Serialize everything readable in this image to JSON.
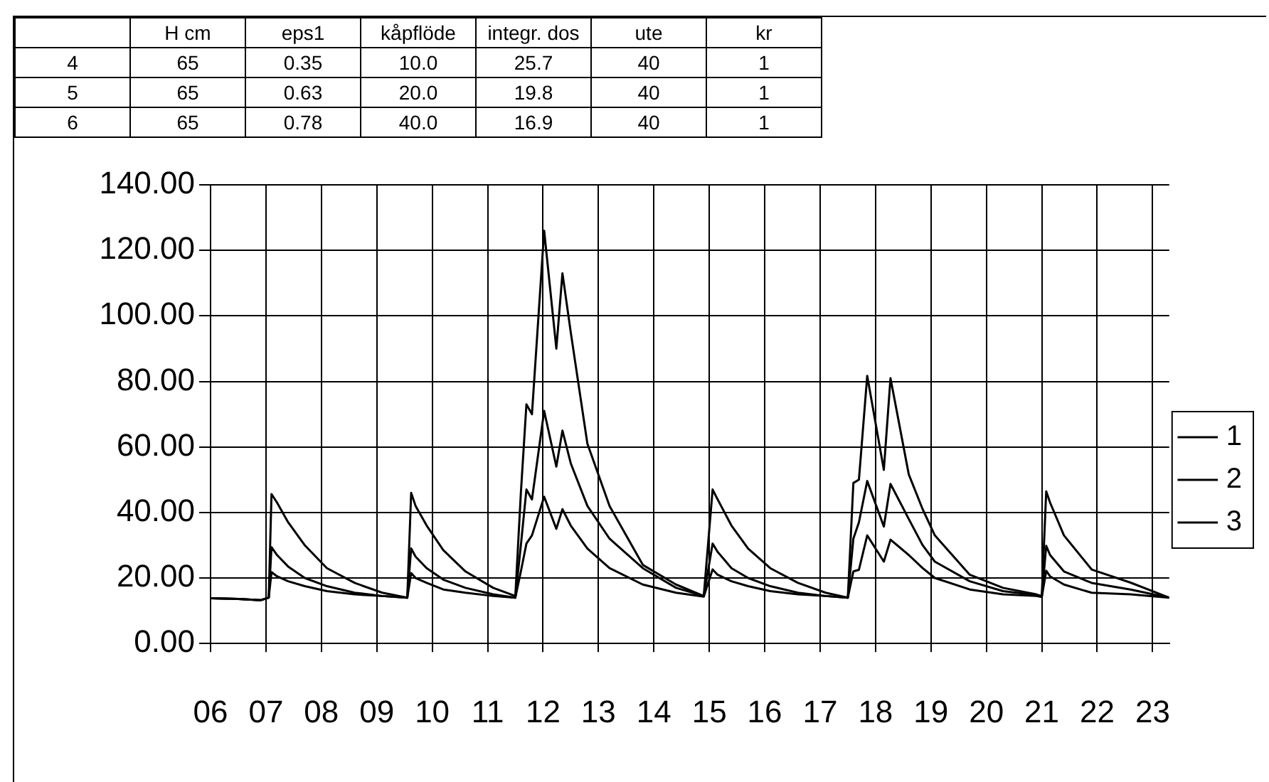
{
  "chart_data": {
    "type": "line",
    "annotations": [
      "H cm",
      "eps1",
      "kåpflöde",
      "integr. dos",
      "ute",
      "kr",
      "4",
      "65",
      "0.35",
      "10.0",
      "25.7",
      "40",
      "1",
      "5",
      "65",
      "0.63",
      "20.0",
      "19.8",
      "40",
      "1",
      "6",
      "65",
      "0.78",
      "40.0",
      "16.9",
      "40",
      "1"
    ],
    "x": [
      6.0,
      6.5,
      6.9,
      7.05,
      7.1,
      7.2,
      7.4,
      7.7,
      8.1,
      8.6,
      9.1,
      9.55,
      9.62,
      9.7,
      9.9,
      10.2,
      10.6,
      11.1,
      11.5,
      11.6,
      11.7,
      11.8,
      12.02,
      12.24,
      12.35,
      12.5,
      12.8,
      13.2,
      13.8,
      14.4,
      14.9,
      15.06,
      15.15,
      15.4,
      15.7,
      16.1,
      16.6,
      17.1,
      17.5,
      17.6,
      17.7,
      17.85,
      18.15,
      18.27,
      18.6,
      18.85,
      19.07,
      19.7,
      20.3,
      20.9,
      21.0,
      21.08,
      21.15,
      21.4,
      21.9,
      22.6,
      23.3
    ],
    "series": [
      {
        "name": "1",
        "color": "#000000",
        "values": [
          13.8,
          13.6,
          13.2,
          14,
          45.6,
          43,
          37,
          30,
          23,
          18.5,
          15.5,
          14,
          46,
          42,
          36,
          28.5,
          22,
          17,
          14.5,
          46,
          73,
          70,
          126,
          90,
          113,
          95,
          61,
          42,
          24,
          18,
          14.5,
          47,
          44,
          36,
          29,
          23,
          18.5,
          15.5,
          14,
          49,
          50,
          81.7,
          53,
          81,
          51.6,
          41,
          33,
          21,
          17,
          15,
          14.5,
          46.4,
          43,
          33,
          22.6,
          18.6,
          14
        ]
      },
      {
        "name": "2",
        "color": "#000000",
        "values": [
          13.8,
          13.6,
          13.2,
          14,
          29.4,
          27,
          23.5,
          20,
          17.5,
          15.5,
          14.5,
          14,
          29,
          26.5,
          23,
          19.5,
          17,
          15,
          14,
          30,
          47,
          44,
          71,
          54,
          65,
          55,
          42,
          32,
          23,
          17,
          14.5,
          30.5,
          28,
          23,
          20,
          17.5,
          15.5,
          14.5,
          14,
          32,
          37,
          49.6,
          35.7,
          48.7,
          38,
          30,
          25,
          19,
          16,
          14.8,
          14.3,
          29.8,
          27,
          22,
          18.5,
          16.5,
          14
        ]
      },
      {
        "name": "3",
        "color": "#000000",
        "values": [
          13.8,
          13.6,
          13.2,
          14,
          21.8,
          20.5,
          19,
          17.5,
          16,
          15,
          14.5,
          14,
          21.5,
          20,
          18.5,
          16.5,
          15.5,
          14.5,
          14,
          22,
          30.5,
          33,
          44.8,
          35,
          41,
          36,
          29,
          23,
          18,
          15.5,
          14.3,
          22.6,
          21,
          19,
          17.5,
          16,
          15,
          14.5,
          14,
          22,
          22.5,
          33,
          25,
          31.7,
          27,
          23,
          20,
          16.5,
          15,
          14.5,
          14.2,
          22.2,
          20.5,
          18,
          15.5,
          15,
          14
        ]
      }
    ],
    "xlim": [
      6,
      23.3
    ],
    "xticks": [
      {
        "value": 6,
        "label": "06"
      },
      {
        "value": 7,
        "label": "07"
      },
      {
        "value": 8,
        "label": "08"
      },
      {
        "value": 9,
        "label": "09"
      },
      {
        "value": 10,
        "label": "10"
      },
      {
        "value": 11,
        "label": "11"
      },
      {
        "value": 12,
        "label": "12"
      },
      {
        "value": 13,
        "label": "13"
      },
      {
        "value": 14,
        "label": "14"
      },
      {
        "value": 15,
        "label": "15"
      },
      {
        "value": 16,
        "label": "16"
      },
      {
        "value": 17,
        "label": "17"
      },
      {
        "value": 18,
        "label": "18"
      },
      {
        "value": 19,
        "label": "19"
      },
      {
        "value": 20,
        "label": "20"
      },
      {
        "value": 21,
        "label": "21"
      },
      {
        "value": 22,
        "label": "22"
      },
      {
        "value": 23,
        "label": "23"
      }
    ],
    "ylim": [
      0,
      140
    ],
    "yticks": [
      {
        "value": 0,
        "label": "0.00"
      },
      {
        "value": 20,
        "label": "20.00"
      },
      {
        "value": 40,
        "label": "40.00"
      },
      {
        "value": 60,
        "label": "60.00"
      },
      {
        "value": 80,
        "label": "80.00"
      },
      {
        "value": 100,
        "label": "100.00"
      },
      {
        "value": 120,
        "label": "120.00"
      },
      {
        "value": 140,
        "label": "140.00"
      }
    ],
    "grid": true,
    "legend": "right",
    "marker": "none",
    "line_style": "solid"
  }
}
